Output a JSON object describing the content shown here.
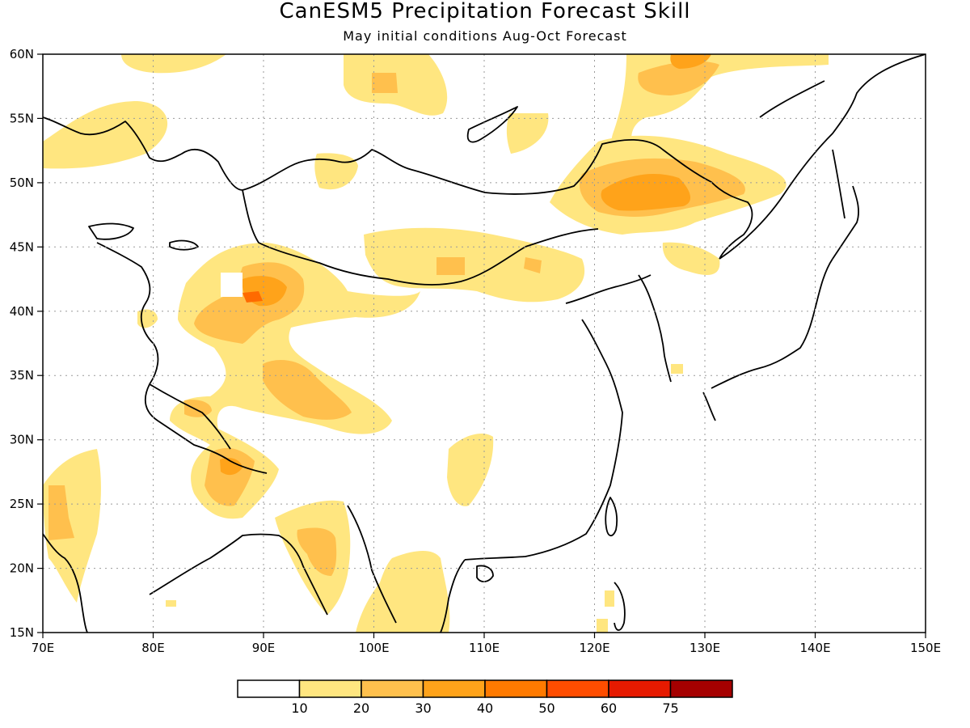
{
  "title": "CanESM5 Precipitation Forecast Skill",
  "subtitle": "May initial conditions  Aug-Oct Forecast",
  "map": {
    "lon_range": [
      70,
      150
    ],
    "lat_range": [
      15,
      60
    ],
    "lon_ticks": [
      "70E",
      "80E",
      "90E",
      "100E",
      "110E",
      "120E",
      "130E",
      "140E",
      "150E"
    ],
    "lat_ticks": [
      "15N",
      "20N",
      "25N",
      "30N",
      "35N",
      "40N",
      "45N",
      "50N",
      "55N",
      "60N"
    ],
    "gridlines": true,
    "gridline_style": "dotted"
  },
  "colorbar": {
    "labels": [
      "10",
      "20",
      "30",
      "40",
      "50",
      "60",
      "75"
    ],
    "colors": [
      "#ffffff",
      "#ffe680",
      "#ffc04d",
      "#ffa31a",
      "#ff7a00",
      "#ff4d00",
      "#e61a00",
      "#a50000"
    ]
  },
  "contour_colors": {
    "level_10": "#ffe680",
    "level_20": "#ffc04d",
    "level_30": "#ffa31a",
    "level_40": "#ff6a00"
  }
}
